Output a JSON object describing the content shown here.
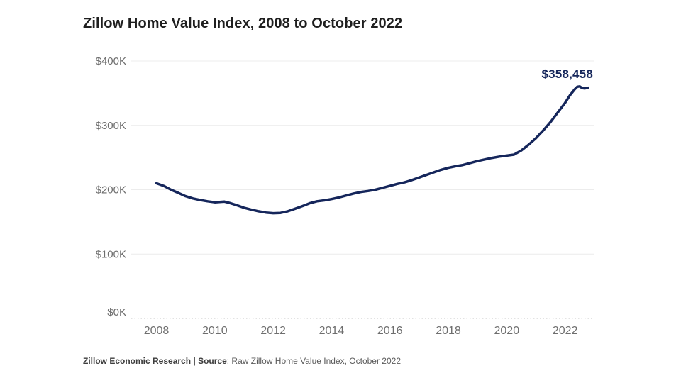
{
  "header": {
    "title": "Zillow Home Value Index, 2008 to October 2022"
  },
  "annotation": {
    "end_value_label": "$358,458"
  },
  "footer": {
    "bold_text": "Zillow Economic Research | Source",
    "regular_text": ": Raw Zillow Home Value Index, October 2022"
  },
  "chart_data": {
    "type": "line",
    "title": "Zillow Home Value Index, 2008 to October 2022",
    "xlabel": "",
    "ylabel": "",
    "xlim": [
      2008,
      2022.83
    ],
    "ylim": [
      0,
      400000
    ],
    "grid": "horizontal",
    "zero_line_style": "dotted",
    "legend": "none",
    "x_ticks": [
      {
        "value": 2008,
        "label": "2008"
      },
      {
        "value": 2010,
        "label": "2010"
      },
      {
        "value": 2012,
        "label": "2012"
      },
      {
        "value": 2014,
        "label": "2014"
      },
      {
        "value": 2016,
        "label": "2016"
      },
      {
        "value": 2018,
        "label": "2018"
      },
      {
        "value": 2020,
        "label": "2020"
      },
      {
        "value": 2022,
        "label": "2022"
      }
    ],
    "y_ticks": [
      {
        "value": 0,
        "label": "$0K"
      },
      {
        "value": 100000,
        "label": "$100K"
      },
      {
        "value": 200000,
        "label": "$200K"
      },
      {
        "value": 300000,
        "label": "$300K"
      },
      {
        "value": 400000,
        "label": "$400K"
      }
    ],
    "series": [
      {
        "name": "Zillow Home Value Index",
        "end_annotation": "$358,458",
        "end_value": 358458,
        "points": [
          [
            2008.0,
            210000
          ],
          [
            2008.25,
            206000
          ],
          [
            2008.5,
            200000
          ],
          [
            2008.75,
            195000
          ],
          [
            2009.0,
            190000
          ],
          [
            2009.25,
            186500
          ],
          [
            2009.5,
            184000
          ],
          [
            2009.75,
            182000
          ],
          [
            2010.0,
            180500
          ],
          [
            2010.33,
            181500
          ],
          [
            2010.5,
            179500
          ],
          [
            2010.75,
            176000
          ],
          [
            2011.0,
            172000
          ],
          [
            2011.25,
            169000
          ],
          [
            2011.5,
            166500
          ],
          [
            2011.75,
            164500
          ],
          [
            2012.0,
            163500
          ],
          [
            2012.25,
            164000
          ],
          [
            2012.5,
            166500
          ],
          [
            2012.75,
            170500
          ],
          [
            2013.0,
            174500
          ],
          [
            2013.25,
            179000
          ],
          [
            2013.5,
            182000
          ],
          [
            2013.75,
            183500
          ],
          [
            2014.0,
            185500
          ],
          [
            2014.25,
            188000
          ],
          [
            2014.5,
            191000
          ],
          [
            2014.75,
            194000
          ],
          [
            2015.0,
            196500
          ],
          [
            2015.25,
            198000
          ],
          [
            2015.5,
            200000
          ],
          [
            2015.75,
            203000
          ],
          [
            2016.0,
            206000
          ],
          [
            2016.25,
            209000
          ],
          [
            2016.5,
            211500
          ],
          [
            2016.75,
            215000
          ],
          [
            2017.0,
            219000
          ],
          [
            2017.25,
            223000
          ],
          [
            2017.5,
            227000
          ],
          [
            2017.75,
            231000
          ],
          [
            2018.0,
            234000
          ],
          [
            2018.25,
            236500
          ],
          [
            2018.5,
            238500
          ],
          [
            2018.75,
            241500
          ],
          [
            2019.0,
            244500
          ],
          [
            2019.25,
            247000
          ],
          [
            2019.5,
            249500
          ],
          [
            2019.75,
            251500
          ],
          [
            2020.0,
            253000
          ],
          [
            2020.25,
            254500
          ],
          [
            2020.5,
            261000
          ],
          [
            2020.75,
            270000
          ],
          [
            2021.0,
            280000
          ],
          [
            2021.25,
            292000
          ],
          [
            2021.5,
            305000
          ],
          [
            2021.75,
            320000
          ],
          [
            2022.0,
            335000
          ],
          [
            2022.17,
            347000
          ],
          [
            2022.33,
            356000
          ],
          [
            2022.42,
            360000
          ],
          [
            2022.5,
            360500
          ],
          [
            2022.58,
            358000
          ],
          [
            2022.67,
            357500
          ],
          [
            2022.79,
            358458
          ]
        ]
      }
    ],
    "colors": {
      "line": "#15265b",
      "annotation": "#15265b",
      "grid": "#ececec",
      "zero_line": "#d9d9d9",
      "tick_label": "#6e6e6e",
      "title": "#1f1f1f"
    }
  }
}
